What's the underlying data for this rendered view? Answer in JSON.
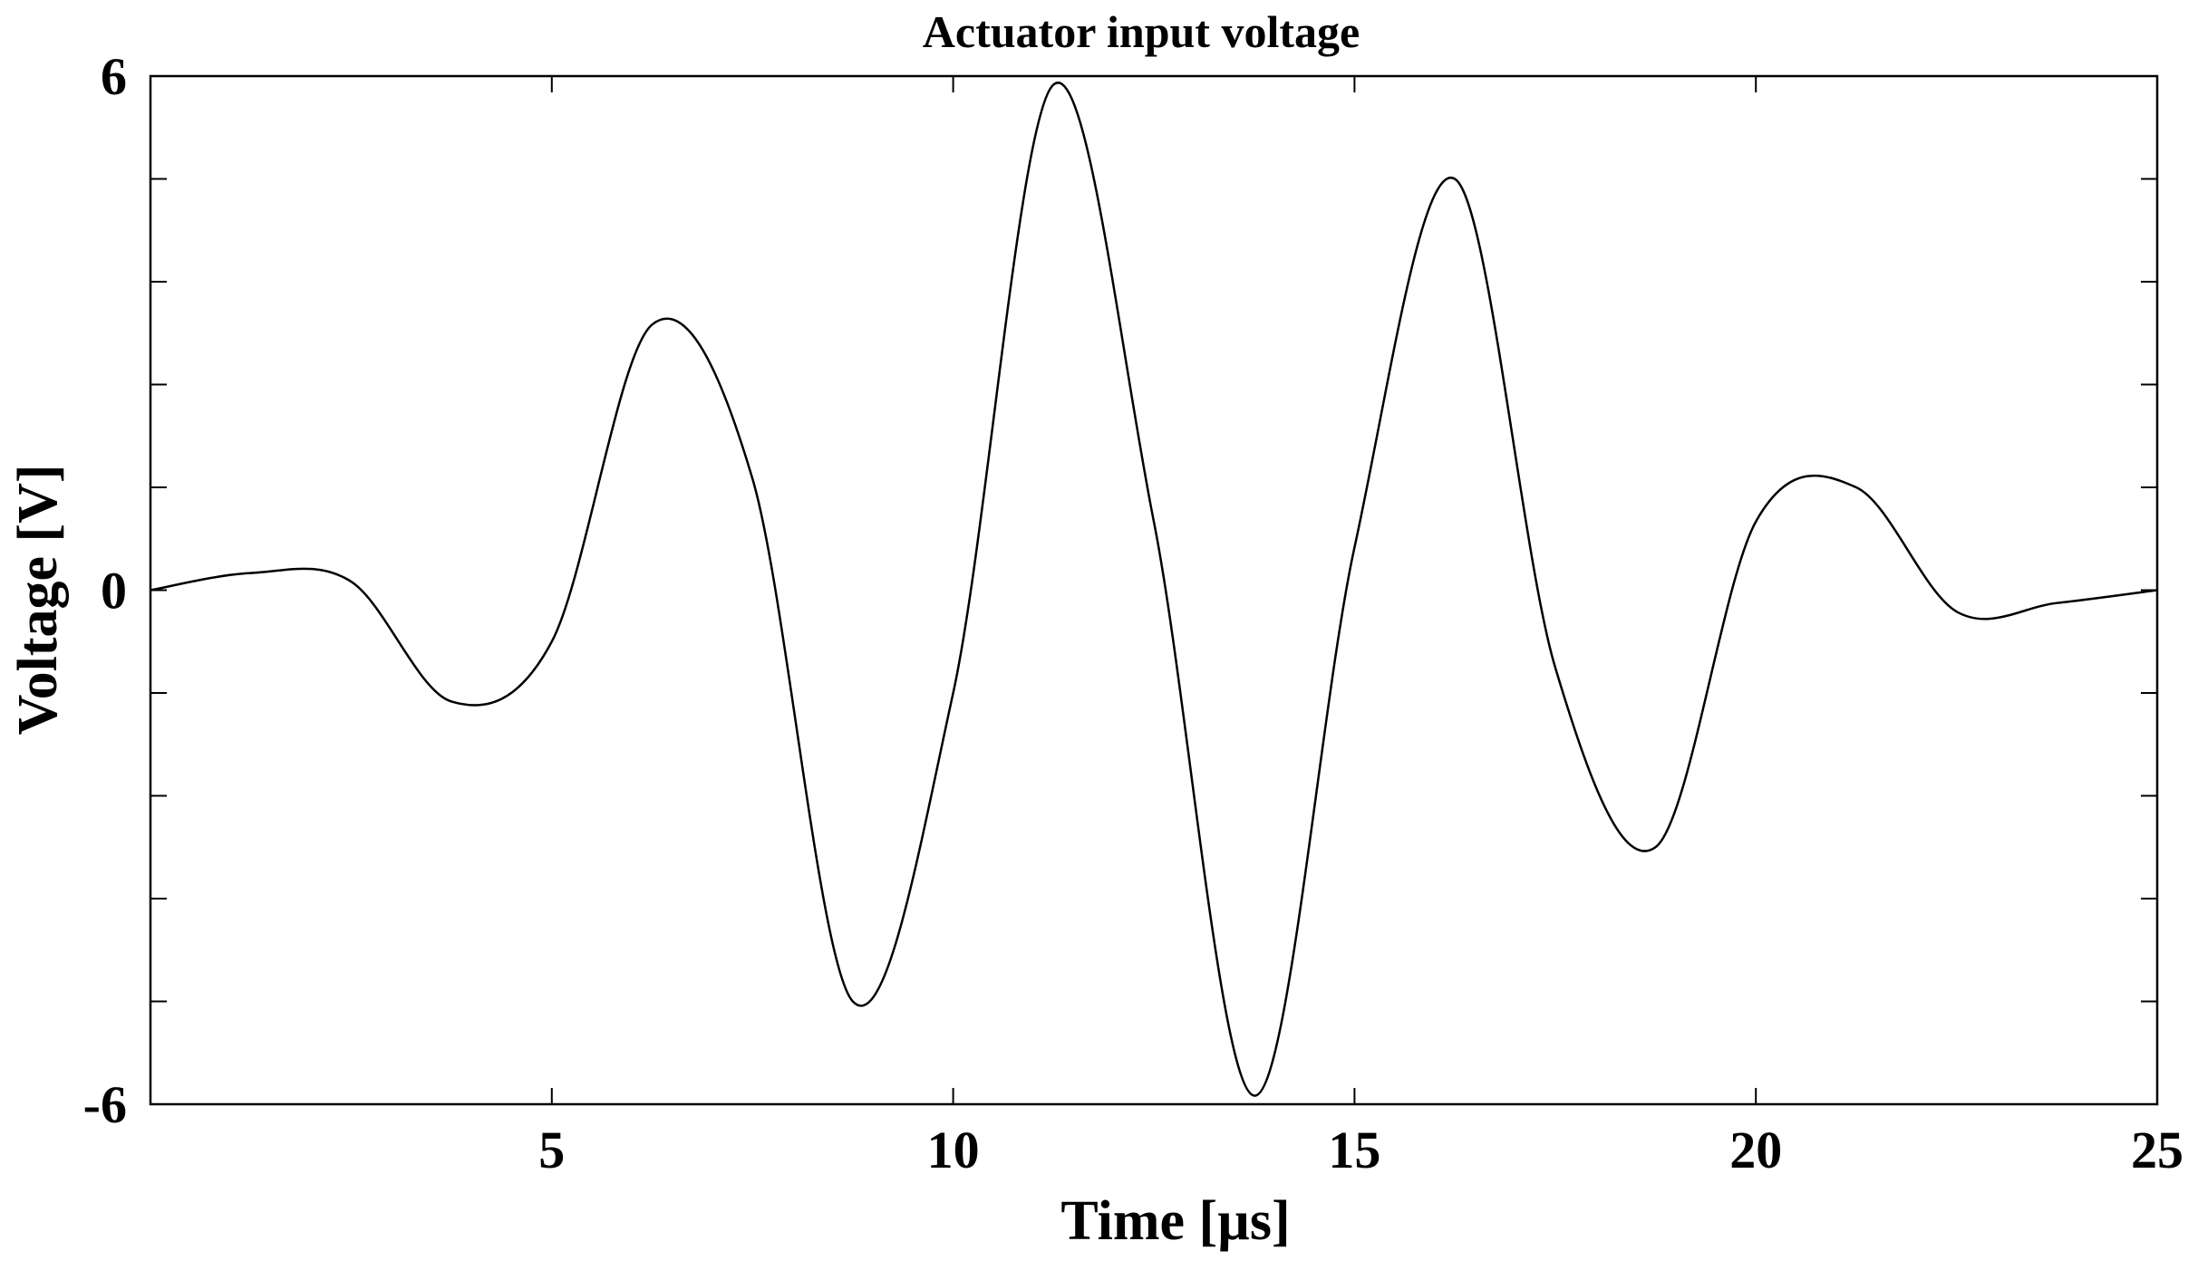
{
  "chart_data": {
    "type": "line",
    "title": "Actuator input voltage",
    "xlabel": "Time [µs]",
    "ylabel": "Voltage [V]",
    "xlim": [
      0,
      25
    ],
    "ylim": [
      -6,
      6
    ],
    "x_ticks": [
      5,
      10,
      15,
      20,
      25
    ],
    "x_tick_labels": [
      "5",
      "10",
      "15",
      "20",
      "25"
    ],
    "y_ticks": [
      -6,
      0,
      6
    ],
    "y_tick_labels": [
      "-6",
      "0",
      "6"
    ],
    "y_minor_ticks": [
      -4.8,
      -3.6,
      -2.4,
      -1.2,
      1.2,
      2.4,
      3.6,
      4.8
    ],
    "grid": false,
    "legend": "none",
    "line_color": "#000000",
    "series": [
      {
        "x": [
          0,
          1.25,
          2.5,
          3.75,
          5,
          6.25,
          7.5,
          8.75,
          10,
          11.25,
          12.5,
          13.75,
          15,
          16.25,
          17.5,
          18.75,
          20,
          21.25,
          22.5,
          23.75,
          25
        ],
        "values": [
          0,
          0.2,
          0.1,
          -1.3,
          -0.6,
          3.1,
          1.3,
          -4.8,
          -1.2,
          5.9,
          0.8,
          -5.9,
          0.5,
          4.8,
          -0.9,
          -3.0,
          0.8,
          1.2,
          -0.25,
          -0.15,
          0
        ]
      }
    ]
  }
}
